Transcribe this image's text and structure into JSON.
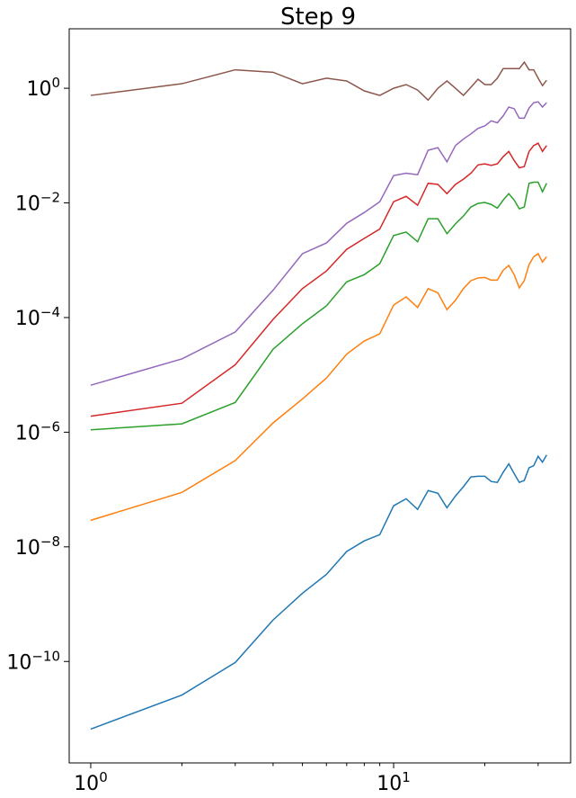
{
  "chart_data": {
    "type": "line",
    "title": "Step 9",
    "log_x": true,
    "log_y": true,
    "x": [
      1,
      2,
      3,
      4,
      5,
      6,
      7,
      8,
      9,
      10,
      11,
      12,
      13,
      14,
      15,
      16,
      17,
      18,
      19,
      20,
      21,
      22,
      23,
      24,
      25,
      26,
      27,
      28,
      29,
      30,
      31,
      32
    ],
    "series": [
      {
        "color": "#1f77b4",
        "values": [
          6.6e-12,
          2.6e-11,
          9.6e-11,
          5.3e-10,
          1.55e-09,
          3.3e-09,
          8.3e-09,
          1.27e-08,
          1.63e-08,
          5.2e-08,
          6.9e-08,
          4.5e-08,
          9.6e-08,
          8.6e-08,
          4.8e-08,
          7.7e-08,
          1.12e-07,
          1.66e-07,
          1.7e-07,
          1.7e-07,
          1.38e-07,
          1.33e-07,
          2e-07,
          2.8e-07,
          1.9e-07,
          1.33e-07,
          1.44e-07,
          2.4e-07,
          2.6e-07,
          3.8e-07,
          3e-07,
          4e-07
        ]
      },
      {
        "color": "#ff7f0e",
        "values": [
          2.9e-08,
          8.9e-08,
          3.2e-07,
          1.45e-06,
          3.8e-06,
          8.8e-06,
          2.3e-05,
          3.9e-05,
          5.2e-05,
          0.000165,
          0.00023,
          0.00015,
          0.00032,
          0.00027,
          0.000137,
          0.0002,
          0.00032,
          0.00044,
          0.00049,
          0.0005,
          0.00045,
          0.00045,
          0.00067,
          0.00081,
          0.00056,
          0.00033,
          0.00044,
          0.00084,
          0.00115,
          0.0013,
          0.00093,
          0.00115
        ]
      },
      {
        "color": "#2ca02c",
        "values": [
          1.1e-06,
          1.4e-06,
          3.3e-06,
          2.8e-05,
          7.8e-05,
          0.00016,
          0.00042,
          0.00056,
          0.00087,
          0.0027,
          0.0031,
          0.0021,
          0.0053,
          0.0053,
          0.0029,
          0.0043,
          0.0059,
          0.0085,
          0.0098,
          0.0102,
          0.0094,
          0.0081,
          0.0112,
          0.0145,
          0.0112,
          0.0079,
          0.0085,
          0.022,
          0.023,
          0.023,
          0.0156,
          0.022
        ]
      },
      {
        "color": "#d62728",
        "values": [
          1.9e-06,
          3.2e-06,
          1.5e-05,
          9.3e-05,
          0.00032,
          0.00065,
          0.00155,
          0.0024,
          0.0035,
          0.0105,
          0.013,
          0.0091,
          0.022,
          0.021,
          0.0145,
          0.021,
          0.026,
          0.033,
          0.046,
          0.048,
          0.045,
          0.048,
          0.064,
          0.079,
          0.055,
          0.041,
          0.043,
          0.079,
          0.1,
          0.11,
          0.079,
          0.1
        ]
      },
      {
        "color": "#9467bd",
        "values": [
          6.6e-06,
          1.9e-05,
          5.6e-05,
          0.0003,
          0.0013,
          0.002,
          0.0044,
          0.0068,
          0.0105,
          0.03,
          0.033,
          0.031,
          0.083,
          0.092,
          0.052,
          0.1,
          0.13,
          0.16,
          0.2,
          0.22,
          0.27,
          0.25,
          0.33,
          0.47,
          0.44,
          0.3,
          0.3,
          0.45,
          0.56,
          0.58,
          0.47,
          0.56
        ]
      },
      {
        "color": "#8c564b",
        "values": [
          0.75,
          1.2,
          2.1,
          1.9,
          1.2,
          1.5,
          1.34,
          0.9,
          0.75,
          1.0,
          1.16,
          0.93,
          0.62,
          1.0,
          1.34,
          1.0,
          0.75,
          1.04,
          1.44,
          1.16,
          1.16,
          1.5,
          2.2,
          2.2,
          2.2,
          2.2,
          2.85,
          2.1,
          2.1,
          1.5,
          1.11,
          1.38
        ]
      }
    ],
    "xlim": [
      0.849,
      38.4
    ],
    "ylim": [
      1.7e-12,
      10.9
    ],
    "xticks": [
      {
        "value": 1,
        "label": "10^0"
      },
      {
        "value": 10,
        "label": "10^1"
      }
    ],
    "xminor_ticks": [
      2,
      3,
      4,
      5,
      6,
      7,
      8,
      9,
      20,
      30
    ],
    "yticks": [
      {
        "value": 1e-10,
        "label": "10^−10"
      },
      {
        "value": 1e-08,
        "label": "10^−8"
      },
      {
        "value": 1e-06,
        "label": "10^−6"
      },
      {
        "value": 0.0001,
        "label": "10^−4"
      },
      {
        "value": 0.01,
        "label": "10^−2"
      },
      {
        "value": 1,
        "label": "10^0"
      }
    ],
    "grid": false
  }
}
